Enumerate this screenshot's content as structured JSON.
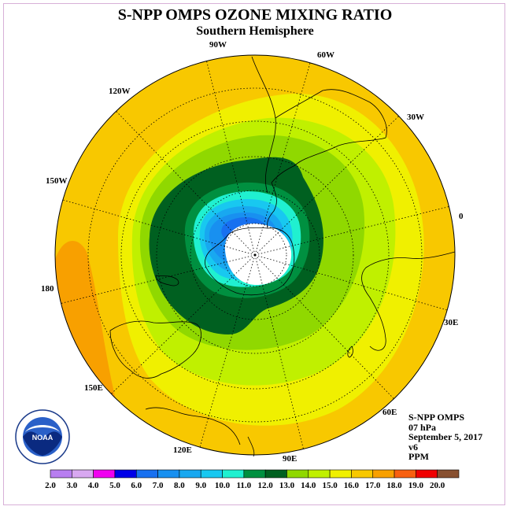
{
  "title": "S-NPP OMPS OZONE MIXING RATIO",
  "subtitle": "Southern Hemisphere",
  "info": {
    "instrument": "S-NPP OMPS",
    "level": "07 hPa",
    "date": "September 5, 2017",
    "version": "v6",
    "units": "PPM"
  },
  "longitude_labels": [
    "90W",
    "60W",
    "30W",
    "0",
    "30E",
    "60E",
    "90E",
    "120E",
    "150E",
    "180",
    "150W",
    "120W"
  ],
  "colorbar": {
    "ticks": [
      "2.0",
      "3.0",
      "4.0",
      "5.0",
      "6.0",
      "7.0",
      "8.0",
      "9.0",
      "10.0",
      "11.0",
      "12.0",
      "13.0",
      "14.0",
      "15.0",
      "16.0",
      "17.0",
      "18.0",
      "19.0",
      "20.0"
    ],
    "colors": [
      "#b87ef0",
      "#d8a8f0",
      "#f000f0",
      "#0000e8",
      "#1870f0",
      "#1890f0",
      "#18a8f0",
      "#18c8f0",
      "#20f0d0",
      "#009040",
      "#006020",
      "#90d800",
      "#c0f000",
      "#f0f000",
      "#f8c800",
      "#f8a000",
      "#f86010",
      "#f00000",
      "#885030"
    ]
  },
  "logo": {
    "text": "NOAA",
    "ring_text": "NATIONAL OCEANIC AND ATMOSPHERIC ADMINISTRATION · U.S. DEPARTMENT OF COMMERCE"
  },
  "map_colors": {
    "land_outline": "#000000",
    "grid": "#000000",
    "polar_night": "#ffffff"
  }
}
